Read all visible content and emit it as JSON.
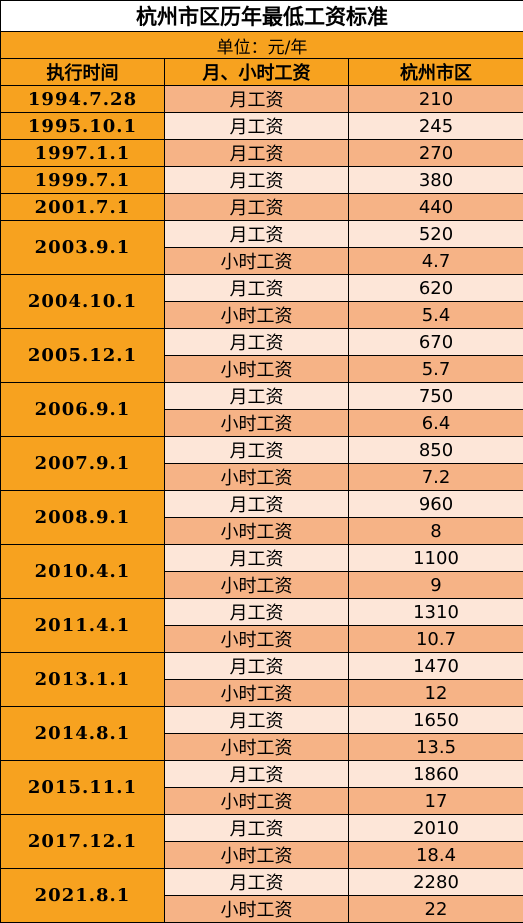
{
  "title": "杭州市区历年最低工资标准",
  "unit": "单位：元/年",
  "headers": [
    "执行时间",
    "月、小时工资",
    "杭州市区"
  ],
  "rows": [
    {
      "date": "1994.7.28",
      "wages": [
        {
          "type": "月工资",
          "value": 210
        }
      ]
    },
    {
      "date": "1995.10.1",
      "wages": [
        {
          "type": "月工资",
          "value": 245
        }
      ]
    },
    {
      "date": "1997.1.1",
      "wages": [
        {
          "type": "月工资",
          "value": 270
        }
      ]
    },
    {
      "date": "1999.7.1",
      "wages": [
        {
          "type": "月工资",
          "value": 380
        }
      ]
    },
    {
      "date": "2001.7.1",
      "wages": [
        {
          "type": "月工资",
          "value": 440
        }
      ]
    },
    {
      "date": "2003.9.1",
      "wages": [
        {
          "type": "月工资",
          "value": 520
        },
        {
          "type": "小时工资",
          "value": 4.7
        }
      ]
    },
    {
      "date": "2004.10.1",
      "wages": [
        {
          "type": "月工资",
          "value": 620
        },
        {
          "type": "小时工资",
          "value": 5.4
        }
      ]
    },
    {
      "date": "2005.12.1",
      "wages": [
        {
          "type": "月工资",
          "value": 670
        },
        {
          "type": "小时工资",
          "value": 5.7
        }
      ]
    },
    {
      "date": "2006.9.1",
      "wages": [
        {
          "type": "月工资",
          "value": 750
        },
        {
          "type": "小时工资",
          "value": 6.4
        }
      ]
    },
    {
      "date": "2007.9.1",
      "wages": [
        {
          "type": "月工资",
          "value": 850
        },
        {
          "type": "小时工资",
          "value": 7.2
        }
      ]
    },
    {
      "date": "2008.9.1",
      "wages": [
        {
          "type": "月工资",
          "value": 960
        },
        {
          "type": "小时工资",
          "value": 8
        }
      ]
    },
    {
      "date": "2010.4.1",
      "wages": [
        {
          "type": "月工资",
          "value": 1100
        },
        {
          "type": "小时工资",
          "value": 9
        }
      ]
    },
    {
      "date": "2011.4.1",
      "wages": [
        {
          "type": "月工资",
          "value": 1310
        },
        {
          "type": "小时工资",
          "value": 10.7
        }
      ]
    },
    {
      "date": "2013.1.1",
      "wages": [
        {
          "type": "月工资",
          "value": 1470
        },
        {
          "type": "小时工资",
          "value": 12
        }
      ]
    },
    {
      "date": "2014.8.1",
      "wages": [
        {
          "type": "月工资",
          "value": 1650
        },
        {
          "type": "小时工资",
          "value": 13.5
        }
      ]
    },
    {
      "date": "2015.11.1",
      "wages": [
        {
          "type": "月工资",
          "value": 1860
        },
        {
          "type": "小时工资",
          "value": 17
        }
      ]
    },
    {
      "date": "2017.12.1",
      "wages": [
        {
          "type": "月工资",
          "value": 2010
        },
        {
          "type": "小时工资",
          "value": 18.4
        }
      ]
    },
    {
      "date": "2021.8.1",
      "wages": [
        {
          "type": "月工资",
          "value": 2280
        },
        {
          "type": "小时工资",
          "value": 22
        }
      ]
    }
  ]
}
